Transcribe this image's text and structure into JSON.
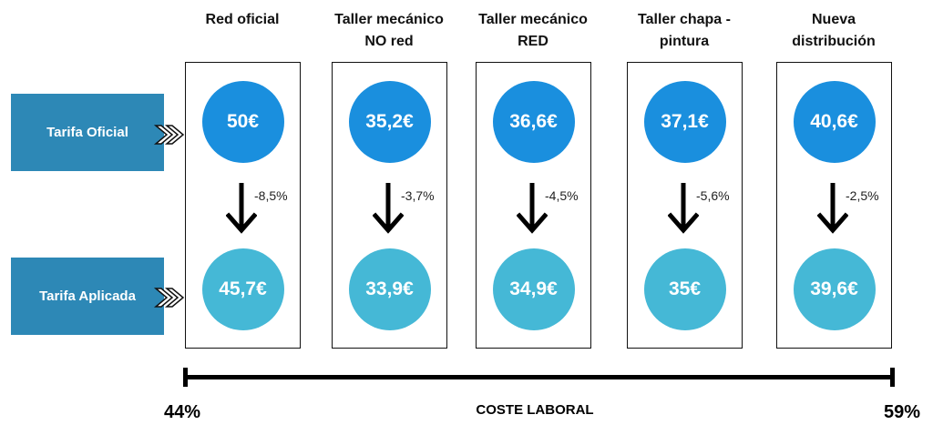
{
  "rows": {
    "official_label": "Tarifa Oficial",
    "applied_label": "Tarifa Aplicada"
  },
  "columns": [
    {
      "header": "Red oficial",
      "official": "50€",
      "applied": "45,7€",
      "change": "-8,5%"
    },
    {
      "header": "Taller mecánico\nNO red",
      "official": "35,2€",
      "applied": "33,9€",
      "change": "-3,7%"
    },
    {
      "header": "Taller mecánico\nRED",
      "official": "36,6€",
      "applied": "34,9€",
      "change": "-4,5%"
    },
    {
      "header": "Taller chapa -\npintura",
      "official": "37,1€",
      "applied": "35€",
      "change": "-5,6%"
    },
    {
      "header": "Nueva\ndistribución",
      "official": "40,6€",
      "applied": "39,6€",
      "change": "-2,5%"
    }
  ],
  "axis": {
    "title": "COSTE LABORAL",
    "left": "44%",
    "right": "59%"
  },
  "colors": {
    "label_bg": "#2d88b6",
    "official_circle": "#1a8fde",
    "applied_circle": "#45b8d6"
  }
}
